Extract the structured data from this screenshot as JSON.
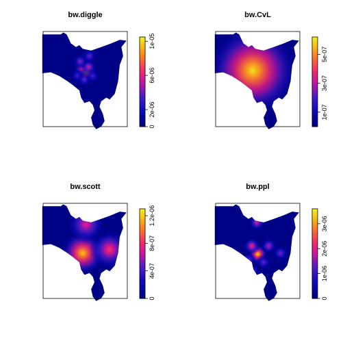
{
  "chart_data": [
    {
      "type": "heatmap",
      "title": "bw.diggle",
      "colorbar": {
        "ticks": [
          0,
          2e-06,
          6e-06,
          1e-05
        ],
        "tick_labels": [
          "0",
          "2e-06",
          "6e-06",
          "1e-05"
        ],
        "range": [
          0,
          1.05e-05
        ]
      },
      "hotspots": [
        {
          "x": 0.52,
          "y": 0.42,
          "value": 1e-05
        },
        {
          "x": 0.47,
          "y": 0.38,
          "value": 6e-06
        },
        {
          "x": 0.55,
          "y": 0.36,
          "value": 5.5e-06
        },
        {
          "x": 0.45,
          "y": 0.3,
          "value": 4.5e-06
        },
        {
          "x": 0.56,
          "y": 0.24,
          "value": 4e-06
        },
        {
          "x": 0.42,
          "y": 0.46,
          "value": 3.5e-06
        },
        {
          "x": 0.5,
          "y": 0.5,
          "value": 4e-06
        },
        {
          "x": 0.6,
          "y": 0.46,
          "value": 3.5e-06
        }
      ]
    },
    {
      "type": "heatmap",
      "title": "bw.CvL",
      "colorbar": {
        "ticks": [
          1e-07,
          3e-07,
          5e-07
        ],
        "tick_labels": [
          "1e-07",
          "3e-07",
          "5e-07"
        ],
        "range": [
          0,
          6.2e-07
        ]
      },
      "hotspots": [
        {
          "x": 0.45,
          "y": 0.4,
          "value": 6e-07
        }
      ]
    },
    {
      "type": "heatmap",
      "title": "bw.scott",
      "colorbar": {
        "ticks": [
          0,
          4e-07,
          8e-07,
          1.2e-06
        ],
        "tick_labels": [
          "0",
          "4e-07",
          "8e-07",
          "1.2e-06"
        ],
        "range": [
          0,
          1.3e-06
        ]
      },
      "hotspots": [
        {
          "x": 0.48,
          "y": 0.52,
          "value": 1.2e-06
        },
        {
          "x": 0.8,
          "y": 0.48,
          "value": 8.5e-07
        },
        {
          "x": 0.52,
          "y": 0.2,
          "value": 7.5e-07
        }
      ]
    },
    {
      "type": "heatmap",
      "title": "bw.ppl",
      "colorbar": {
        "ticks": [
          0,
          1e-06,
          2e-06,
          3e-06
        ],
        "tick_labels": [
          "0",
          "1e-06",
          "2e-06",
          "3e-06"
        ],
        "range": [
          0,
          3.6e-06
        ]
      },
      "hotspots": [
        {
          "x": 0.51,
          "y": 0.53,
          "value": 3.4e-06
        },
        {
          "x": 0.44,
          "y": 0.44,
          "value": 2.2e-06
        },
        {
          "x": 0.5,
          "y": 0.18,
          "value": 2e-06
        },
        {
          "x": 0.64,
          "y": 0.44,
          "value": 1.8e-06
        },
        {
          "x": 0.78,
          "y": 0.52,
          "value": 1.5e-06
        },
        {
          "x": 0.4,
          "y": 0.6,
          "value": 1.6e-06
        },
        {
          "x": 0.58,
          "y": 0.62,
          "value": 1.4e-06
        },
        {
          "x": 0.46,
          "y": 0.72,
          "value": 1.2e-06
        }
      ]
    }
  ]
}
